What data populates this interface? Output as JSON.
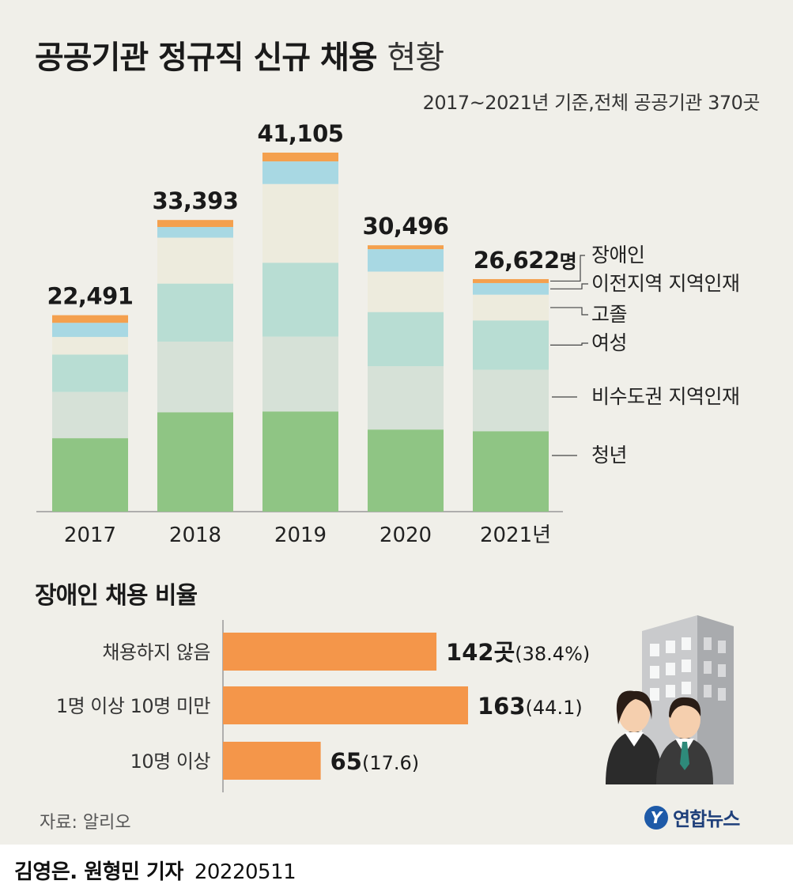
{
  "header": {
    "title_bold": "공공기관 정규직 신규 채용",
    "title_light": "현황",
    "subtitle": "2017~2021년 기준,전체 공공기관 370곳"
  },
  "chart_data": [
    {
      "type": "bar",
      "stacked": true,
      "categories": [
        "2017",
        "2018",
        "2019",
        "2020",
        "2021년"
      ],
      "totals": [
        "22,491",
        "33,393",
        "41,105",
        "30,496",
        "26,622"
      ],
      "total_unit": "명",
      "ylim": [
        0,
        41105
      ],
      "series": [
        {
          "name": "청년",
          "values": [
            8410,
            11380,
            11470,
            9400,
            9210
          ],
          "color": "#8fc584"
        },
        {
          "name": "비수도권 지역인재",
          "values": [
            5300,
            8090,
            8570,
            7250,
            7040
          ],
          "color": "#d6e1d7"
        },
        {
          "name": "여성",
          "values": [
            4280,
            6640,
            8460,
            6200,
            5640
          ],
          "color": "#b8ddd3"
        },
        {
          "name": "고졸",
          "values": [
            2010,
            5260,
            9010,
            4630,
            2950
          ],
          "color": "#edebdd"
        },
        {
          "name": "이전지역 지역인재",
          "values": [
            1620,
            1220,
            2590,
            2570,
            1330
          ],
          "color": "#a8d8e3"
        },
        {
          "name": "장애인",
          "values": [
            871,
            803,
            1005,
            446,
            452
          ],
          "color": "#f4a04e"
        }
      ],
      "legend_order": [
        "장애인",
        "이전지역 지역인재",
        "고졸",
        "여성",
        "비수도권 지역인재",
        "청년"
      ]
    },
    {
      "type": "bar",
      "orientation": "horizontal",
      "title": "장애인 채용 비율",
      "categories": [
        "채용하지 않음",
        "1명 이상 10명 미만",
        "10명 이상"
      ],
      "values": [
        142,
        163,
        65
      ],
      "value_labels": [
        "142곳",
        "163",
        "65"
      ],
      "percent_labels": [
        "(38.4%)",
        "(44.1)",
        "(17.6)"
      ],
      "xlim": [
        0,
        163
      ],
      "color": "#f4964a"
    }
  ],
  "source": "자료: 알리오",
  "logo": {
    "mark": "Y",
    "text": "연합뉴스"
  },
  "footer": {
    "credit": "김영은. 원형민 기자",
    "date": "20220511"
  }
}
